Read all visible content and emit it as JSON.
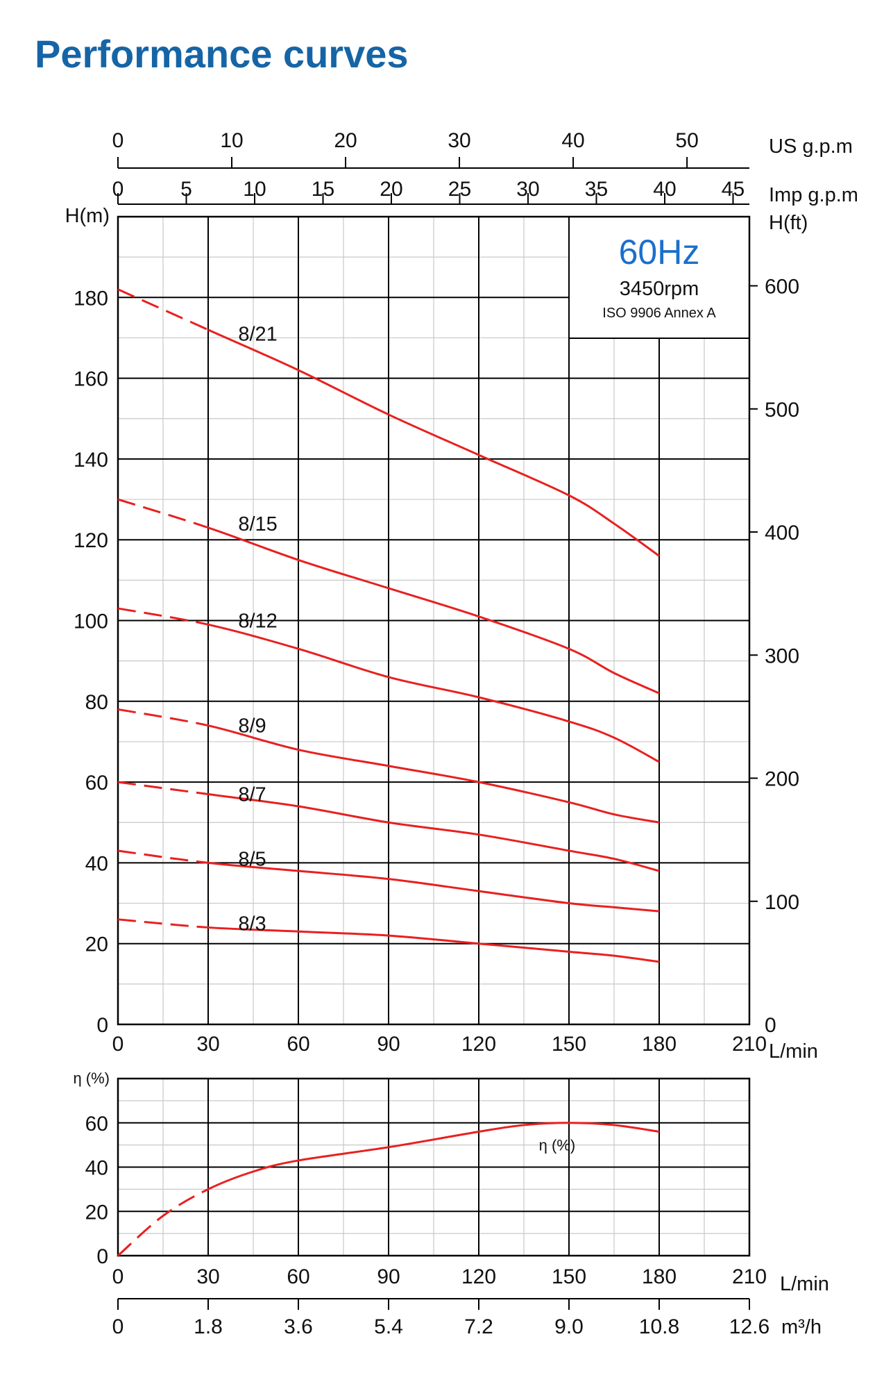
{
  "title": "Performance curves",
  "colors": {
    "title": "#1565a6",
    "curve": "#e8201f",
    "hz": "#1a6fcc",
    "grid": "#000000",
    "minor_grid": "#c8c8c8"
  },
  "info_box": {
    "hz": "60Hz",
    "rpm": "3450rpm",
    "standard": "ISO 9906 Annex A"
  },
  "chart_data": [
    {
      "type": "line",
      "name": "head",
      "ylabel_left": "H(m)",
      "ylabel_right": "H(ft)",
      "xlabel": "L/min",
      "xlim": [
        0,
        210
      ],
      "ylim": [
        0,
        200
      ],
      "x_ticks": [
        0,
        30,
        60,
        90,
        120,
        150,
        180,
        210
      ],
      "y_ticks": [
        0,
        20,
        40,
        60,
        80,
        100,
        120,
        140,
        160,
        180
      ],
      "ft_ticks": [
        0,
        100,
        200,
        300,
        400,
        500,
        600
      ],
      "top_axes": [
        {
          "label": "US g.p.m",
          "ticks": [
            0,
            10,
            20,
            30,
            40,
            50
          ],
          "factor": 3.785
        },
        {
          "label": "Imp g.p.m",
          "ticks": [
            0,
            5,
            10,
            15,
            20,
            25,
            30,
            35,
            40,
            45
          ],
          "factor": 4.546
        }
      ],
      "dashed_until": 30,
      "series": [
        {
          "name": "8/21",
          "label_at": [
            40,
            171
          ],
          "x": [
            0,
            30,
            60,
            90,
            120,
            150,
            165,
            180
          ],
          "y": [
            182,
            172,
            162,
            151,
            141,
            131,
            124,
            116
          ]
        },
        {
          "name": "8/15",
          "label_at": [
            40,
            124
          ],
          "x": [
            0,
            30,
            60,
            90,
            120,
            150,
            165,
            180
          ],
          "y": [
            130,
            123,
            115,
            108,
            101,
            93,
            87,
            82
          ]
        },
        {
          "name": "8/12",
          "label_at": [
            40,
            100
          ],
          "x": [
            0,
            30,
            60,
            90,
            120,
            150,
            165,
            180
          ],
          "y": [
            103,
            99,
            93,
            86,
            81,
            75,
            71,
            65
          ]
        },
        {
          "name": "8/9",
          "label_at": [
            40,
            74
          ],
          "x": [
            0,
            30,
            60,
            90,
            120,
            150,
            165,
            180
          ],
          "y": [
            78,
            74,
            68,
            64,
            60,
            55,
            52,
            50
          ]
        },
        {
          "name": "8/7",
          "label_at": [
            40,
            57
          ],
          "x": [
            0,
            30,
            60,
            90,
            120,
            150,
            165,
            180
          ],
          "y": [
            60,
            57,
            54,
            50,
            47,
            43,
            41,
            38
          ]
        },
        {
          "name": "8/5",
          "label_at": [
            40,
            41
          ],
          "x": [
            0,
            30,
            60,
            90,
            120,
            150,
            165,
            180
          ],
          "y": [
            43,
            40,
            38,
            36,
            33,
            30,
            29,
            28
          ]
        },
        {
          "name": "8/3",
          "label_at": [
            40,
            25
          ],
          "x": [
            0,
            30,
            60,
            90,
            120,
            150,
            165,
            180
          ],
          "y": [
            26,
            24,
            23,
            22,
            20,
            18,
            17,
            15.5
          ]
        }
      ]
    },
    {
      "type": "line",
      "name": "efficiency",
      "ylabel": "η (%)",
      "xlabel": "L/min",
      "xlim": [
        0,
        210
      ],
      "ylim": [
        0,
        80
      ],
      "x_ticks": [
        0,
        30,
        60,
        90,
        120,
        150,
        180,
        210
      ],
      "y_ticks": [
        0,
        20,
        40,
        60
      ],
      "bottom_axis": {
        "label": "m³/h",
        "ticks": [
          "0",
          "1.8",
          "3.6",
          "5.4",
          "7.2",
          "9.0",
          "10.8",
          "12.6"
        ]
      },
      "dashed_until": 30,
      "series": [
        {
          "name": "η (%)",
          "label_at": [
            140,
            50
          ],
          "x": [
            0,
            15,
            30,
            45,
            60,
            90,
            120,
            135,
            150,
            165,
            180
          ],
          "y": [
            0,
            18,
            30,
            38,
            43,
            49,
            56,
            59,
            60,
            59,
            56
          ]
        }
      ]
    }
  ]
}
